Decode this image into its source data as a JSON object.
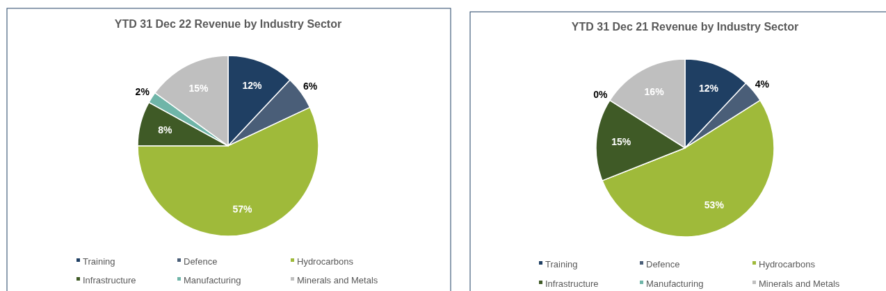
{
  "chart_data": [
    {
      "type": "pie",
      "title": "YTD 31 Dec 22 Revenue by Industry Sector",
      "categories": [
        "Training",
        "Defence",
        "Hydrocarbons",
        "Infrastructure",
        "Manufacturing",
        "Minerals and Metals"
      ],
      "values": [
        12,
        6,
        57,
        8,
        2,
        15
      ],
      "value_labels": [
        "12%",
        "6%",
        "57%",
        "8%",
        "2%",
        "15%"
      ],
      "colors": [
        "#1f3f63",
        "#4a5e78",
        "#9fba3a",
        "#3f5a26",
        "#6fb5a8",
        "#bfbfbf"
      ],
      "legend": "bottom"
    },
    {
      "type": "pie",
      "title": "YTD 31 Dec 21 Revenue by Industry Sector",
      "categories": [
        "Training",
        "Defence",
        "Hydrocarbons",
        "Infrastructure",
        "Manufacturing",
        "Minerals and Metals"
      ],
      "values": [
        12,
        4,
        53,
        15,
        0,
        16
      ],
      "value_labels": [
        "12%",
        "4%",
        "53%",
        "15%",
        "0%",
        "16%"
      ],
      "colors": [
        "#1f3f63",
        "#4a5e78",
        "#9fba3a",
        "#3f5a26",
        "#6fb5a8",
        "#bfbfbf"
      ],
      "legend": "bottom"
    }
  ]
}
